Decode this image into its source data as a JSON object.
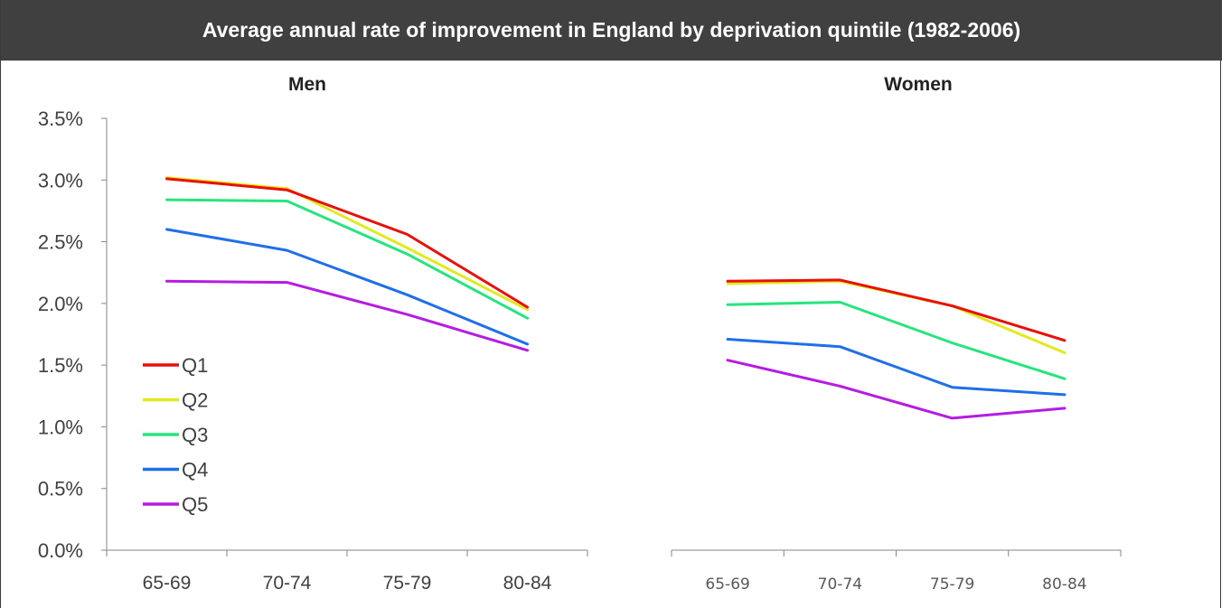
{
  "title": "Average annual rate of improvement in England by deprivation quintile (1982-2006)",
  "colors": {
    "Q1": "#e8100c",
    "Q2": "#e2ea1e",
    "Q3": "#27e57e",
    "Q4": "#1f6fe8",
    "Q5": "#b51be0",
    "title_bg": "#404040"
  },
  "chart_data": [
    {
      "type": "line",
      "title": "Men",
      "categories": [
        "65-69",
        "70-74",
        "75-79",
        "80-84"
      ],
      "ylim": [
        0,
        3.5
      ],
      "yticks": [
        "0.0%",
        "0.5%",
        "1.0%",
        "1.5%",
        "2.0%",
        "2.5%",
        "3.0%",
        "3.5%"
      ],
      "legend": "lower-left",
      "series": [
        {
          "name": "Q1",
          "values": [
            3.01,
            2.92,
            2.56,
            1.97
          ]
        },
        {
          "name": "Q2",
          "values": [
            3.02,
            2.93,
            2.45,
            1.95
          ]
        },
        {
          "name": "Q3",
          "values": [
            2.84,
            2.83,
            2.4,
            1.88
          ]
        },
        {
          "name": "Q4",
          "values": [
            2.6,
            2.43,
            2.07,
            1.67
          ]
        },
        {
          "name": "Q5",
          "values": [
            2.18,
            2.17,
            1.91,
            1.62
          ]
        }
      ]
    },
    {
      "type": "line",
      "title": "Women",
      "categories": [
        "65-69",
        "70-74",
        "75-79",
        "80-84"
      ],
      "ylim": [
        0,
        3.5
      ],
      "series": [
        {
          "name": "Q1",
          "values": [
            2.18,
            2.19,
            1.98,
            1.7
          ]
        },
        {
          "name": "Q2",
          "values": [
            2.16,
            2.18,
            1.98,
            1.6
          ]
        },
        {
          "name": "Q3",
          "values": [
            1.99,
            2.01,
            1.68,
            1.39
          ]
        },
        {
          "name": "Q4",
          "values": [
            1.71,
            1.65,
            1.32,
            1.26
          ]
        },
        {
          "name": "Q5",
          "values": [
            1.54,
            1.33,
            1.07,
            1.15
          ]
        }
      ]
    }
  ]
}
